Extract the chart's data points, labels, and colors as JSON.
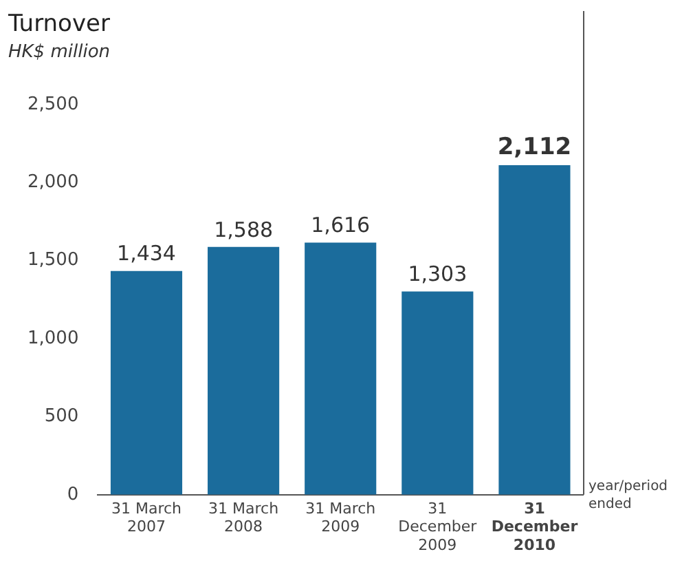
{
  "chart_data": {
    "type": "bar",
    "title": "Turnover",
    "subtitle": "HK$ million",
    "xlabel": "year/period ended",
    "categories": [
      "31 March\n2007",
      "31 March\n2008",
      "31 March\n2009",
      "31\nDecember\n2009",
      "31\nDecember\n2010"
    ],
    "values": [
      1434,
      1588,
      1616,
      1303,
      2112
    ],
    "value_labels": [
      "1,434",
      "1,588",
      "1,616",
      "1,303",
      "2,112"
    ],
    "color": "#1b6c9c",
    "ylim": [
      0,
      2500
    ],
    "yticks": [
      {
        "value": 0,
        "label": "0"
      },
      {
        "value": 500,
        "label": "500"
      },
      {
        "value": 1000,
        "label": "1,000"
      },
      {
        "value": 1500,
        "label": "1,500"
      },
      {
        "value": 2000,
        "label": "2,000"
      },
      {
        "value": 2500,
        "label": "2,500"
      }
    ],
    "grid": false,
    "legend": false
  }
}
